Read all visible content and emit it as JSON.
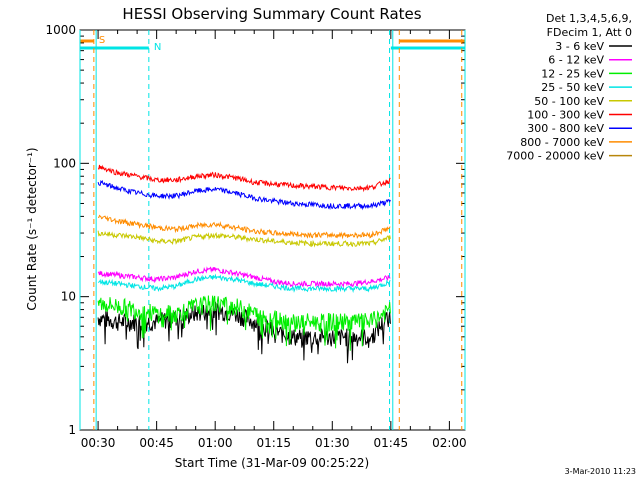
{
  "chart_data": {
    "type": "line",
    "title": "HESSI Observing Summary Count Rates",
    "xlabel": "Start Time (31-Mar-09 00:25:22)",
    "ylabel": "Count Rate (s⁻¹ detector⁻¹)",
    "yscale": "log",
    "ylim": [
      1,
      1000
    ],
    "xlim": [
      "00:25:22",
      "02:04:00"
    ],
    "x_ticks": [
      "00:30",
      "00:45",
      "01:00",
      "01:15",
      "01:30",
      "01:45",
      "02:00"
    ],
    "y_ticks": [
      "1",
      "10",
      "100",
      "1000"
    ],
    "grid": false,
    "legend_header": [
      "Det 1,3,4,5,6,9,",
      "FDecim 1, Att 0"
    ],
    "legend_position": "top-right, outside plot",
    "footer_date": "3-Mar-2010 11:23",
    "time_samples": [
      "00:30",
      "00:35",
      "00:40",
      "00:45",
      "00:50",
      "00:55",
      "01:00",
      "01:05",
      "01:10",
      "01:15",
      "01:20",
      "01:25",
      "01:30",
      "01:35",
      "01:40",
      "01:45"
    ],
    "series": [
      {
        "name": "3 - 6 keV",
        "color": "#000000",
        "values": [
          7,
          6.5,
          6.5,
          6.5,
          7,
          7.5,
          8,
          7.5,
          6.5,
          5.5,
          5,
          5,
          5,
          5,
          5,
          7.5
        ]
      },
      {
        "name": "6 - 12 keV",
        "color": "#ff00ff",
        "values": [
          15,
          14.5,
          14,
          13.5,
          14,
          15.5,
          16,
          15,
          14,
          13,
          12.5,
          12.5,
          12.5,
          12.5,
          13,
          14
        ]
      },
      {
        "name": "12 - 25 keV",
        "color": "#00ee00",
        "values": [
          9,
          8.5,
          8,
          7.5,
          7.5,
          8.5,
          9,
          8.5,
          7.5,
          7,
          6.5,
          6.5,
          6.5,
          6.5,
          6.5,
          8
        ]
      },
      {
        "name": "25 - 50 keV",
        "color": "#00e5e5",
        "values": [
          13,
          12.5,
          12,
          11.5,
          12,
          13.5,
          14,
          13.5,
          12.5,
          12,
          11.5,
          11.5,
          11.5,
          11.5,
          11.5,
          13
        ]
      },
      {
        "name": "50 - 100 keV",
        "color": "#c8c800",
        "values": [
          30,
          29,
          28,
          26,
          26,
          28,
          29,
          28,
          27,
          26,
          25.5,
          25,
          25,
          25,
          25,
          28
        ]
      },
      {
        "name": "100 - 300 keV",
        "color": "#ff0000",
        "values": [
          95,
          85,
          80,
          75,
          75,
          80,
          82,
          78,
          72,
          70,
          68,
          67,
          66,
          65,
          66,
          75
        ]
      },
      {
        "name": "300 - 800 keV",
        "color": "#0000ff",
        "values": [
          72,
          65,
          60,
          57,
          57,
          62,
          64,
          60,
          55,
          52,
          50,
          49,
          48,
          48,
          48,
          52
        ]
      },
      {
        "name": "800 - 7000 keV",
        "color": "#ff8c00",
        "values": [
          40,
          37,
          35,
          33,
          32,
          34,
          35,
          33,
          31,
          30,
          29.5,
          29,
          29,
          29,
          29,
          33
        ]
      },
      {
        "name": "7000 - 20000 keV",
        "color": "#b8860b",
        "values": [],
        "note": "no data drawn"
      }
    ],
    "flags": {
      "s_label": "S",
      "n_label": "N",
      "s_intervals": [
        [
          "00:25:22",
          "00:28:55"
        ],
        [
          "01:47:10",
          "02:04:00"
        ]
      ],
      "n_intervals": [
        [
          "00:25:22",
          "00:43:00"
        ],
        [
          "01:45:00",
          "02:04:00"
        ]
      ],
      "s_boundaries": [
        "00:28:55",
        "01:47:10",
        "02:03:10"
      ],
      "n_boundaries": [
        "00:43:00",
        "01:44:40"
      ],
      "data_gaps": [
        [
          "00:25:22",
          "00:29:30"
        ],
        [
          "01:45:30",
          "02:04:00"
        ]
      ]
    }
  }
}
